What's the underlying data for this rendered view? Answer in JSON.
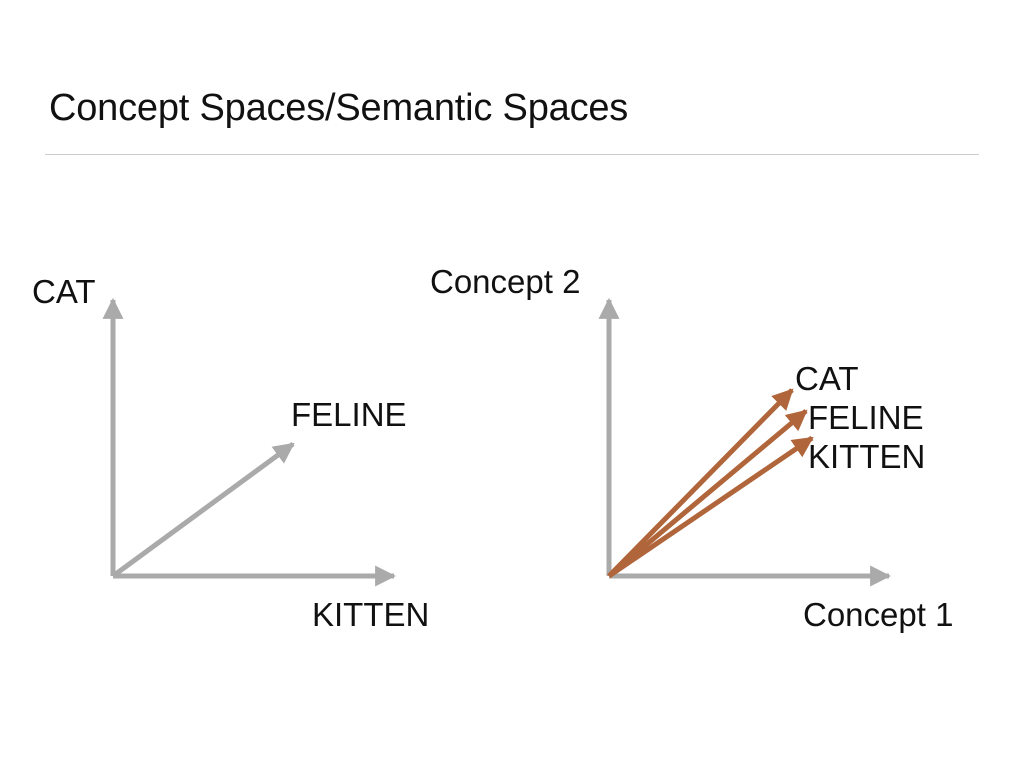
{
  "slide": {
    "title": "Concept Spaces/Semantic Spaces"
  },
  "colors": {
    "axis": "#aaaaaa",
    "vector": "#b0653a",
    "rule": "#cccccc",
    "text": "#111111"
  },
  "left_diagram": {
    "y_axis_label": "CAT",
    "x_axis_label": "KITTEN",
    "vector_label": "FELINE"
  },
  "right_diagram": {
    "y_axis_label": "Concept 2",
    "x_axis_label": "Concept 1",
    "vector_labels": [
      "CAT",
      "FELINE",
      "KITTEN"
    ]
  }
}
